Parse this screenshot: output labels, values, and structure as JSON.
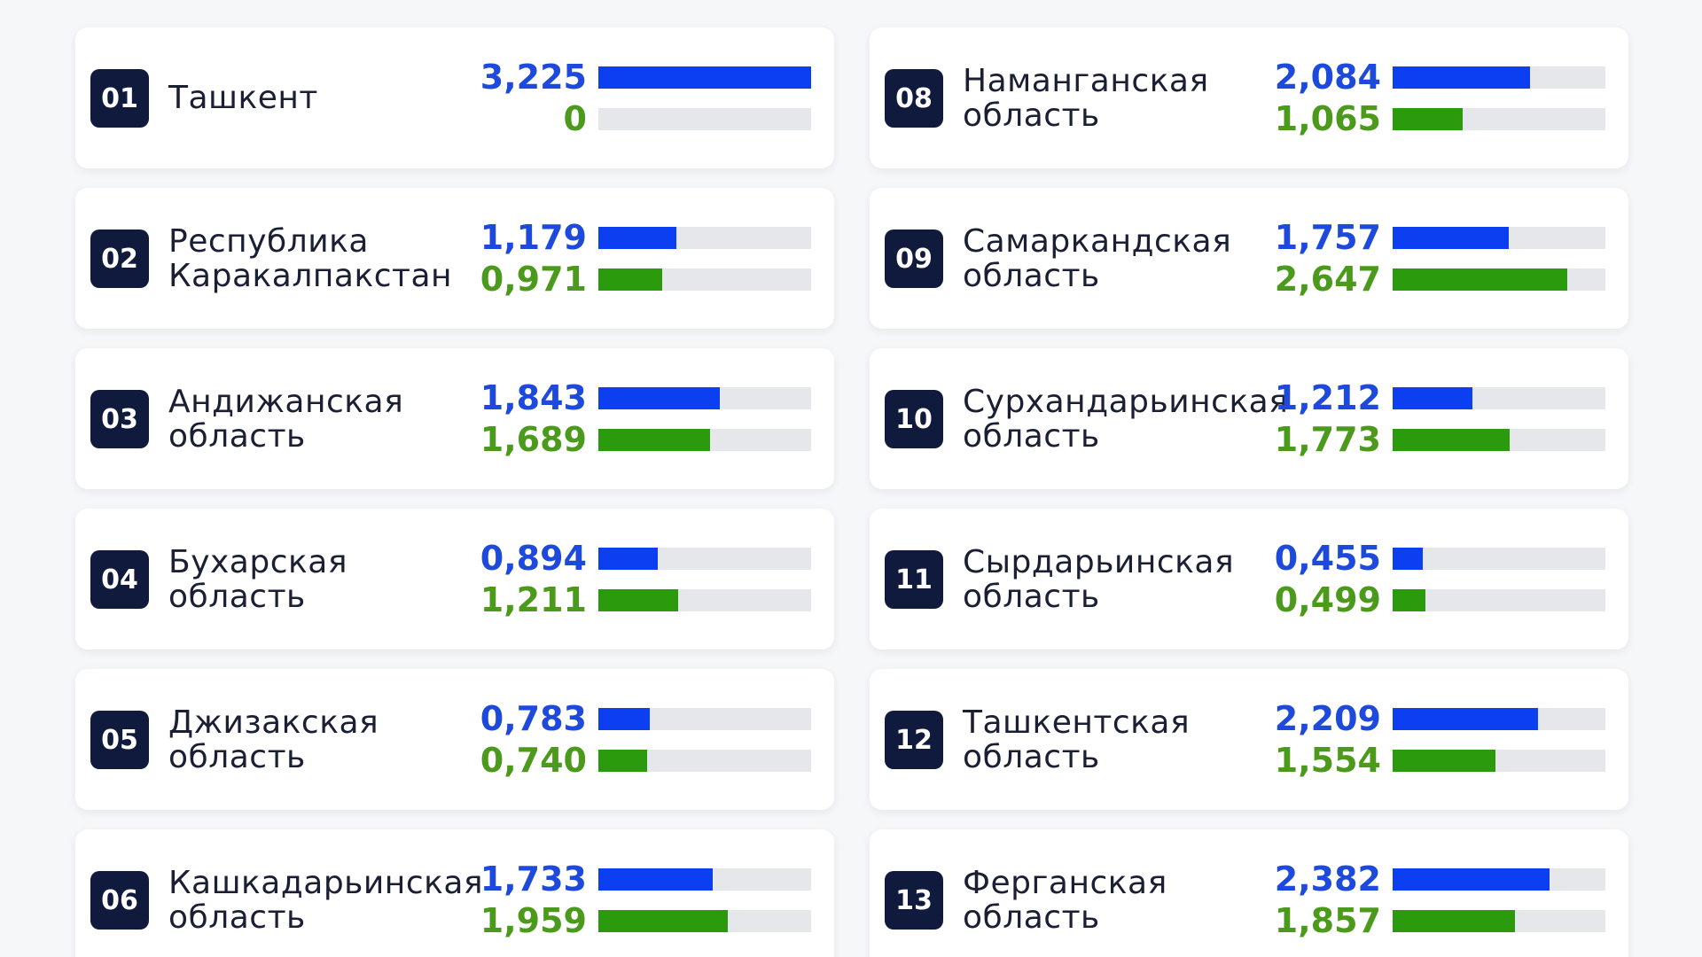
{
  "chart_data": {
    "type": "bar",
    "codes": [
      "01",
      "02",
      "03",
      "04",
      "05",
      "06",
      "08",
      "09",
      "10",
      "11",
      "12",
      "13"
    ],
    "categories": [
      "Ташкент",
      "Республика\nКаракалпакстан",
      "Андижанская\nобласть",
      "Бухарская\nобласть",
      "Джизакская\nобласть",
      "Кашкадарьинская\nобласть",
      "Наманганская\nобласть",
      "Самаркандская\nобласть",
      "Сурхандарьинская\nобласть",
      "Сырдарьинская\nобласть",
      "Ташкентская\nобласть",
      "Ферганская\nобласть"
    ],
    "xlim": [
      0,
      3.225
    ],
    "track_color": "#e6e7ea",
    "series": [
      {
        "color": "#0b3ff0",
        "label_color": "#1d49dc",
        "values": [
          3.225,
          1.179,
          1.843,
          0.894,
          0.783,
          1.733,
          2.084,
          1.757,
          1.212,
          0.455,
          2.209,
          2.382
        ],
        "value_labels": [
          "3,225",
          "1,179",
          "1,843",
          "0,894",
          "0,783",
          "1,733",
          "2,084",
          "1,757",
          "1,212",
          "0,455",
          "2,209",
          "2,382"
        ]
      },
      {
        "color": "#2b9a0d",
        "label_color": "#4c9a1c",
        "values": [
          0,
          0.971,
          1.689,
          1.211,
          0.74,
          1.959,
          1.065,
          2.647,
          1.773,
          0.499,
          1.554,
          1.857
        ],
        "value_labels": [
          "0",
          "0,971",
          "1,689",
          "1,211",
          "0,740",
          "1,959",
          "1,065",
          "2,647",
          "1,773",
          "0,499",
          "1,554",
          "1,857"
        ]
      }
    ]
  }
}
